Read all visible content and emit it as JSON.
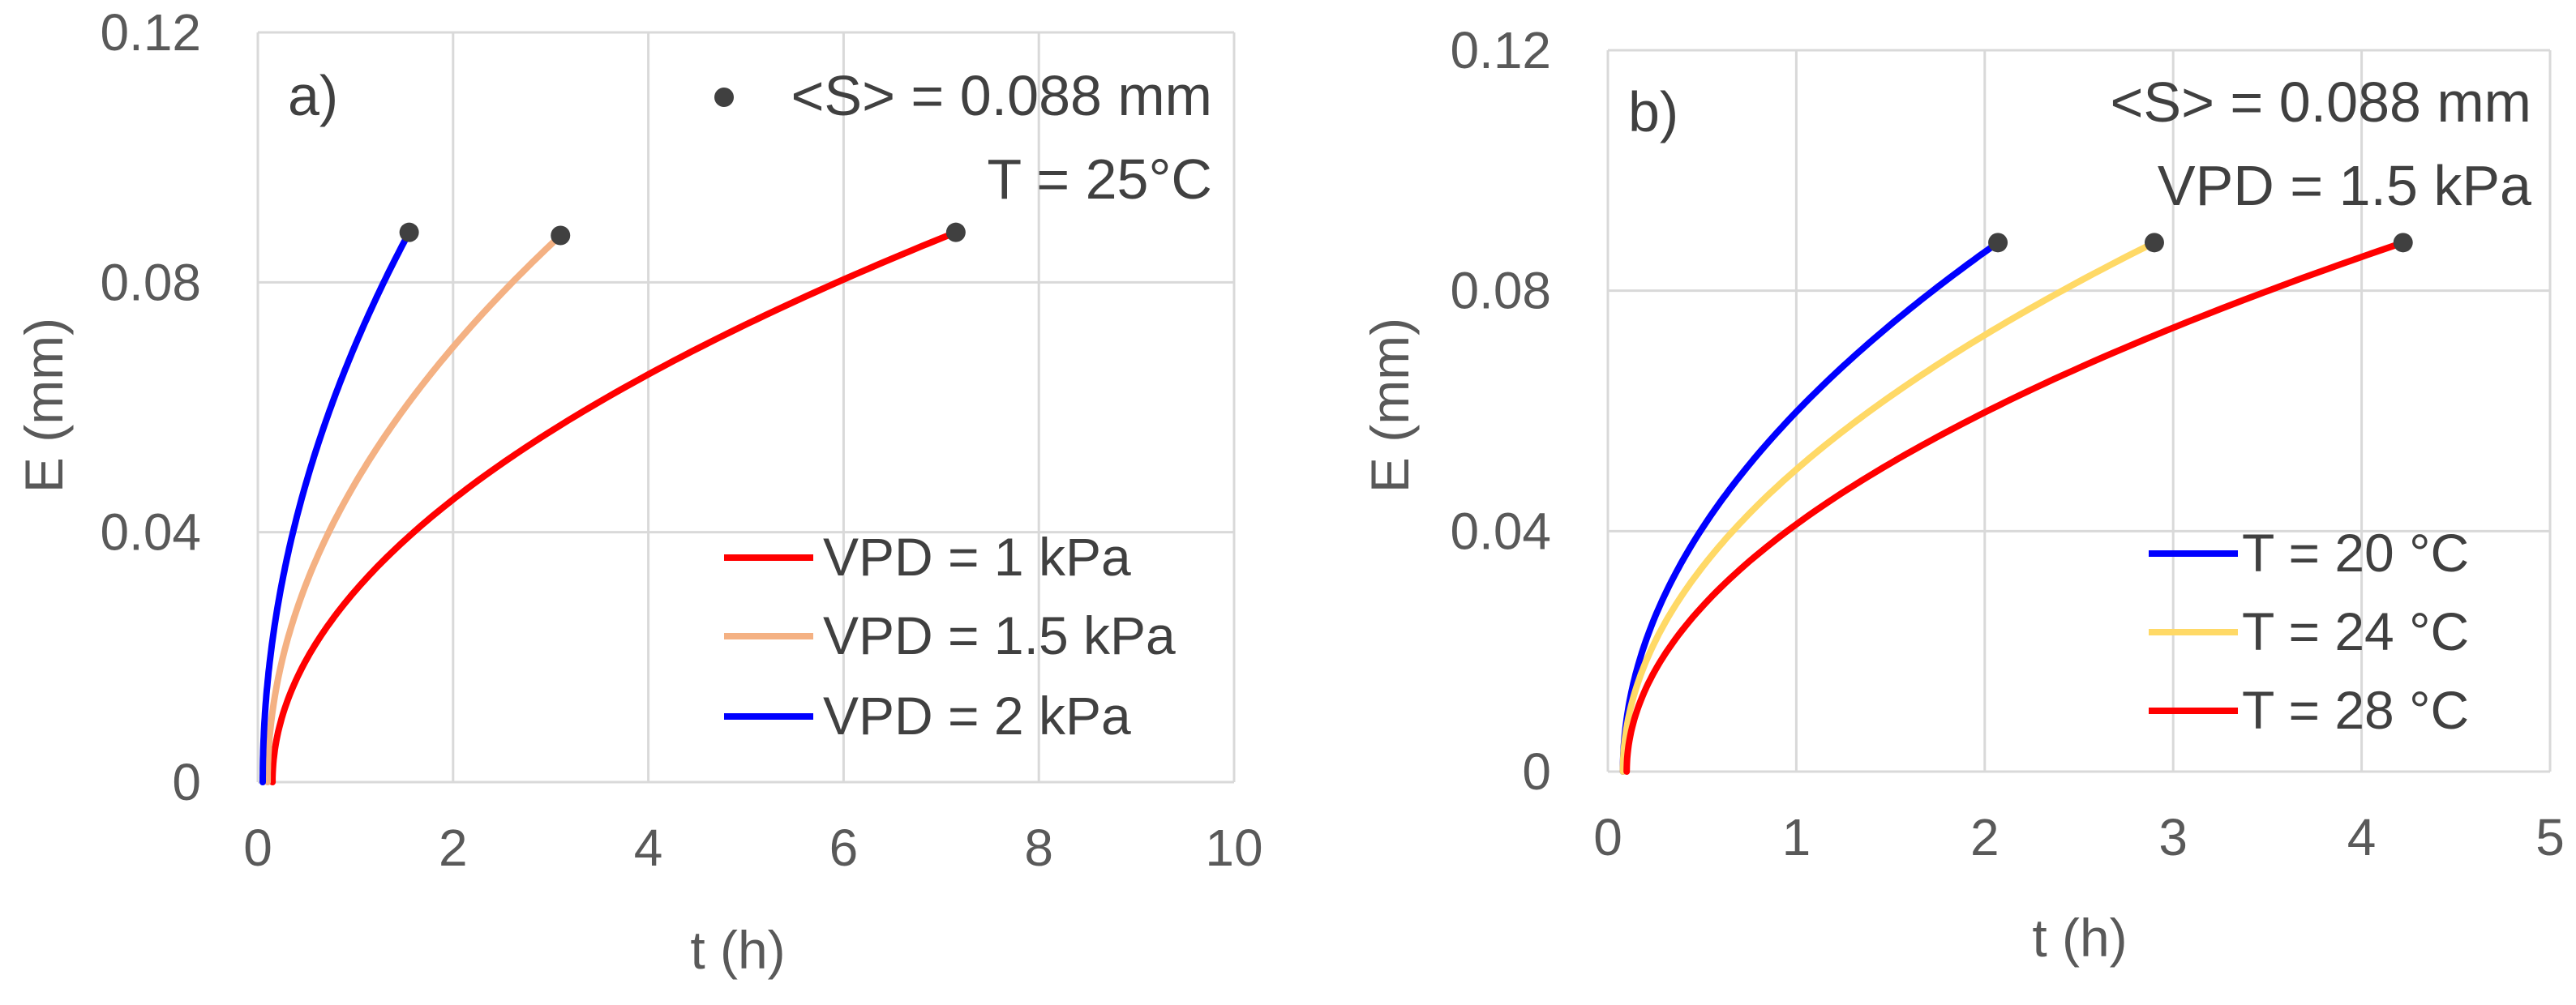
{
  "chart_data": [
    {
      "type": "line",
      "panel_label": "a)",
      "xlabel": "t (h)",
      "ylabel": "E (mm)",
      "xlim": [
        0,
        10
      ],
      "ylim": [
        0,
        0.12
      ],
      "x_ticks": [
        "0",
        "2",
        "4",
        "6",
        "8",
        "10"
      ],
      "y_ticks": [
        "0",
        "0.04",
        "0.08",
        "0.12"
      ],
      "grid": true,
      "annotations": [
        "<S> = 0.088 mm",
        "T = 25°C"
      ],
      "legend_position": "bottom-right",
      "series": [
        {
          "name": "VPD = 1 kPa",
          "color": "#ff0000",
          "t0": 0.15,
          "t_end": 7.15,
          "E_end": 0.088
        },
        {
          "name": "VPD = 1.5 kPa",
          "color": "#f4b183",
          "t0": 0.1,
          "t_end": 3.1,
          "E_end": 0.0875
        },
        {
          "name": "VPD = 2 kPa",
          "color": "#0000ff",
          "t0": 0.05,
          "t_end": 1.55,
          "E_end": 0.088
        }
      ]
    },
    {
      "type": "line",
      "panel_label": "b)",
      "xlabel": "t (h)",
      "ylabel": "E (mm)",
      "xlim": [
        0,
        5
      ],
      "ylim": [
        0,
        0.12
      ],
      "x_ticks": [
        "0",
        "1",
        "2",
        "3",
        "4",
        "5"
      ],
      "y_ticks": [
        "0",
        "0.04",
        "0.08",
        "0.12"
      ],
      "grid": true,
      "annotations": [
        "<S> = 0.088 mm",
        "VPD = 1.5 kPa"
      ],
      "legend_position": "bottom-right",
      "series": [
        {
          "name": "T = 20 °C",
          "color": "#0000ff",
          "t0": 0.08,
          "t_end": 2.07,
          "E_end": 0.088
        },
        {
          "name": "T = 24 °C",
          "color": "#ffd966",
          "t0": 0.08,
          "t_end": 2.9,
          "E_end": 0.088
        },
        {
          "name": "T = 28 °C",
          "color": "#ff0000",
          "t0": 0.1,
          "t_end": 4.22,
          "E_end": 0.088
        }
      ]
    }
  ]
}
